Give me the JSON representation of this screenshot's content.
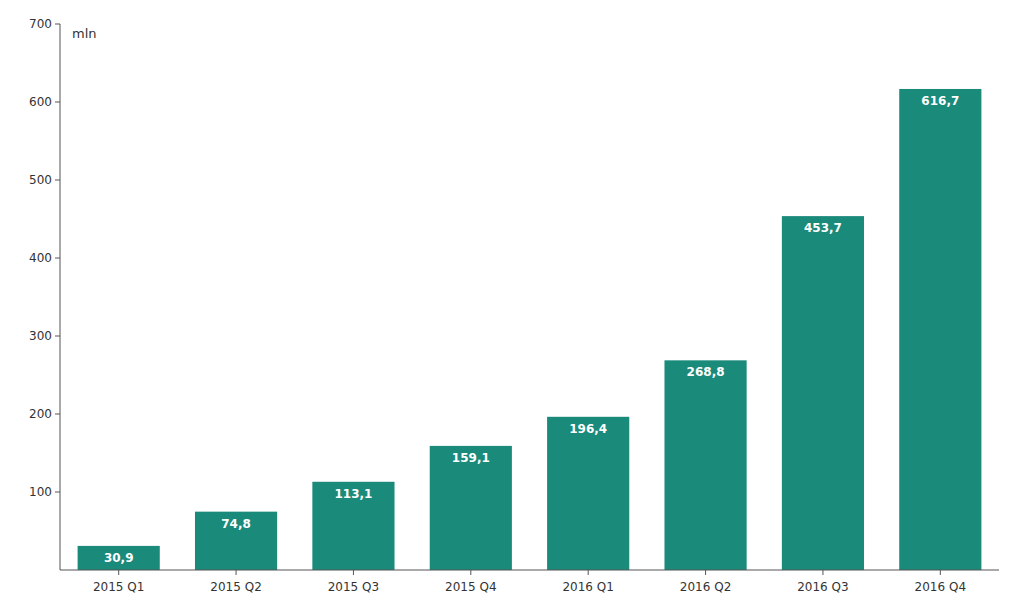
{
  "chart_data": {
    "type": "bar",
    "ylabel": "mln",
    "categories": [
      "2015 Q1",
      "2015 Q2",
      "2015 Q3",
      "2015 Q4",
      "2016 Q1",
      "2016 Q2",
      "2016 Q3",
      "2016 Q4"
    ],
    "values": [
      30.9,
      74.8,
      113.1,
      159.1,
      196.4,
      268.8,
      453.7,
      616.7
    ],
    "value_labels": [
      "30,9",
      "74,8",
      "113,1",
      "159,1",
      "196,4",
      "268,8",
      "453,7",
      "616,7"
    ],
    "data_labels": true,
    "color": "#1a8a7a",
    "ylim": [
      0,
      700
    ],
    "yticks": [
      100,
      200,
      300,
      400,
      500,
      600,
      700
    ],
    "grid": false
  }
}
